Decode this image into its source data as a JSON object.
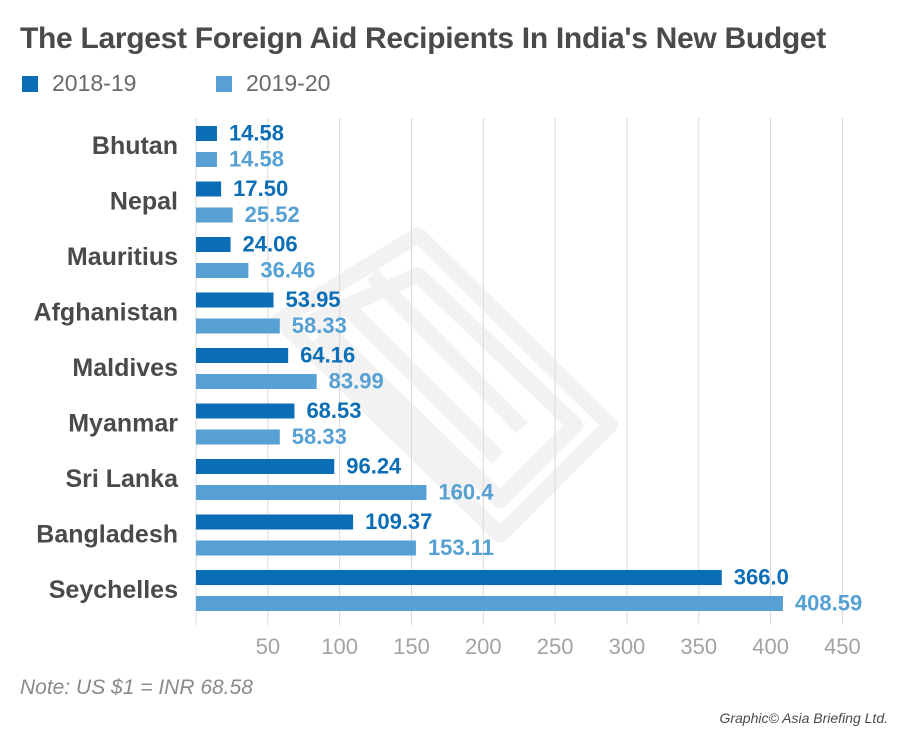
{
  "title": "The Largest Foreign Aid Recipients In India's New Budget",
  "note": "Note: US $1 = INR 68.58",
  "credit": "Graphic© Asia Briefing Ltd.",
  "colors": {
    "series_2018": "#0b6db5",
    "series_2019": "#56a0d3",
    "grid": "#d9d9d9",
    "tick": "#a3a3a3",
    "category": "#4a4a4a",
    "watermark": "#f2f2f2"
  },
  "chart_data": {
    "type": "bar",
    "orientation": "horizontal",
    "categories": [
      "Bhutan",
      "Nepal",
      "Mauritius",
      "Afghanistan",
      "Maldives",
      "Myanmar",
      "Sri Lanka",
      "Bangladesh",
      "Seychelles"
    ],
    "series": [
      {
        "name": "2018-19",
        "values": [
          14.58,
          17.5,
          24.06,
          53.95,
          64.16,
          68.53,
          96.24,
          109.37,
          366.0
        ],
        "labels": [
          "14.58",
          "17.50",
          "24.06",
          "53.95",
          "64.16",
          "68.53",
          "96.24",
          "109.37",
          "366.0"
        ]
      },
      {
        "name": "2019-20",
        "values": [
          14.58,
          25.52,
          36.46,
          58.33,
          83.99,
          58.33,
          160.4,
          153.11,
          408.59
        ],
        "labels": [
          "14.58",
          "25.52",
          "36.46",
          "58.33",
          "83.99",
          "58.33",
          "160.4",
          "153.11",
          "408.59"
        ]
      }
    ],
    "x_ticks": [
      "50",
      "100",
      "150",
      "200",
      "250",
      "300",
      "350",
      "400",
      "450"
    ],
    "xlim": [
      0,
      460
    ],
    "grid": true,
    "legend_position": "top-left"
  }
}
